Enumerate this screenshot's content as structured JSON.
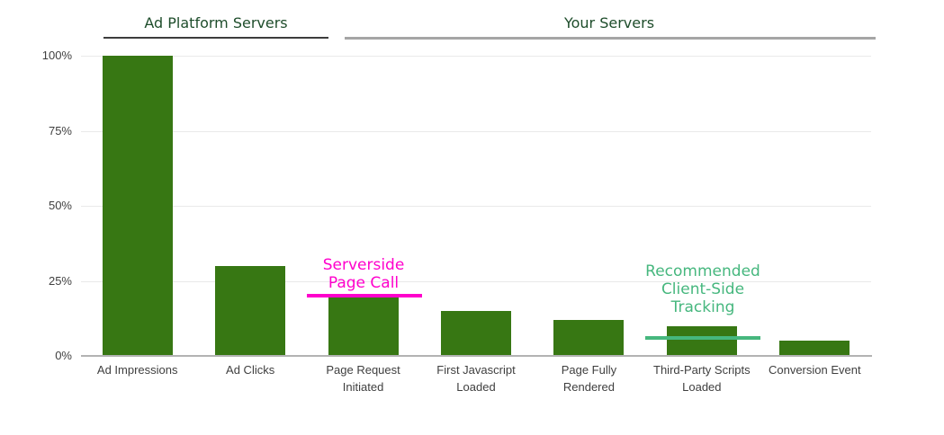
{
  "chart_data": {
    "type": "bar",
    "categories": [
      "Ad Impressions",
      "Ad Clicks",
      "Page Request Initiated",
      "First Javascript Loaded",
      "Page Fully Rendered",
      "Third-Party Scripts Loaded",
      "Conversion Event"
    ],
    "values": [
      100,
      30,
      20,
      15,
      12,
      10,
      5
    ],
    "yticks": [
      0,
      25,
      50,
      75,
      100
    ],
    "ytick_labels": [
      "0%",
      "25%",
      "50%",
      "75%",
      "100%"
    ],
    "ylim": [
      0,
      100
    ],
    "grid": true,
    "legend_position": "none",
    "section_headers": [
      {
        "label": "Ad Platform Servers",
        "categories_spanned": [
          "Ad Impressions",
          "Ad Clicks"
        ]
      },
      {
        "label": "Your Servers",
        "categories_spanned": [
          "Page Request Initiated",
          "First Javascript Loaded",
          "Page Fully Rendered",
          "Third-Party Scripts Loaded",
          "Conversion Event"
        ]
      }
    ],
    "annotations": [
      {
        "text_lines": [
          "Serverside",
          "Page Call"
        ],
        "color_hex": "#ff00cc",
        "marker_level_pct": 20,
        "target_category": "Page Request Initiated"
      },
      {
        "text_lines": [
          "Recommended",
          "Client-Side",
          "Tracking"
        ],
        "color_hex": "#46b77e",
        "marker_level_pct": 6,
        "target_category": "Third-Party Scripts Loaded"
      }
    ]
  },
  "colors": {
    "bar": "#377713",
    "heading_text": "#1e4d2b",
    "heading1_underline": "#3d3d3d",
    "heading2_underline": "#a5a5a5",
    "magenta_annotation": "#ff00cc",
    "green_annotation": "#46b77e",
    "axis_text": "#3f3f3f",
    "gridline": "#e9e9e9",
    "baseline": "#b3b3b3"
  }
}
